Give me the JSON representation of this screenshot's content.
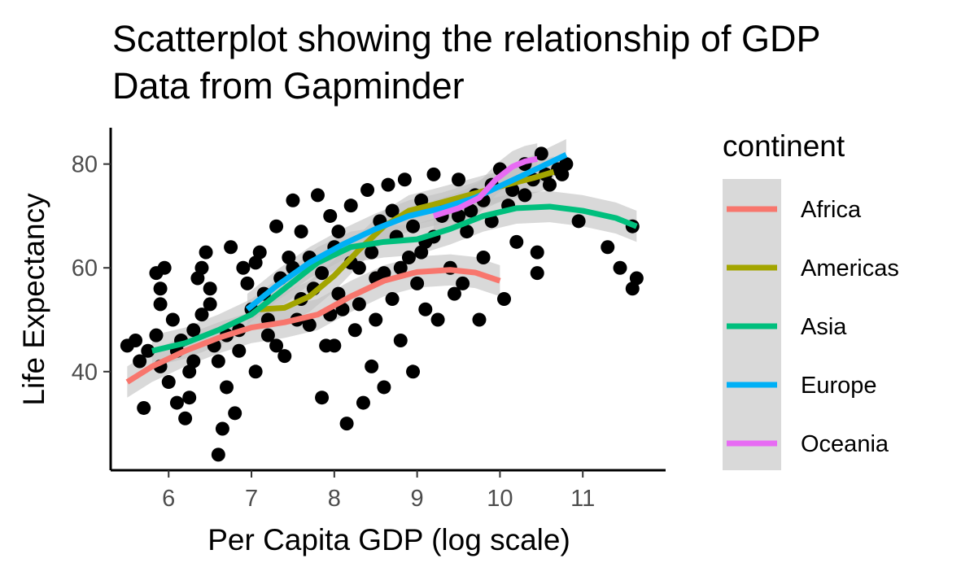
{
  "chart_data": {
    "type": "scatter",
    "title": "Scatterplot showing the relationship of GDP",
    "subtitle": "Data from Gapminder",
    "xlabel": "Per Capita GDP (log scale)",
    "ylabel": "Life Expectancy",
    "xlim": [
      5.3,
      12.0
    ],
    "ylim": [
      21,
      87
    ],
    "x_ticks": [
      6,
      7,
      8,
      9,
      10,
      11
    ],
    "y_ticks": [
      40,
      60,
      80
    ],
    "grid": false,
    "legend": {
      "title": "continent",
      "position": "right"
    },
    "point_color": "#000000",
    "band_color": "#bfbfbf",
    "legend_key_bg": "#d9d9d9",
    "points": [
      [
        5.5,
        45
      ],
      [
        5.6,
        46
      ],
      [
        5.65,
        42
      ],
      [
        5.7,
        33
      ],
      [
        5.75,
        44
      ],
      [
        5.85,
        47
      ],
      [
        5.85,
        59
      ],
      [
        5.9,
        56
      ],
      [
        5.95,
        60
      ],
      [
        5.9,
        53
      ],
      [
        5.9,
        41
      ],
      [
        6.0,
        38
      ],
      [
        6.1,
        34
      ],
      [
        6.1,
        44
      ],
      [
        6.2,
        31
      ],
      [
        6.25,
        35
      ],
      [
        6.3,
        48
      ],
      [
        6.3,
        42
      ],
      [
        6.35,
        58
      ],
      [
        6.4,
        60
      ],
      [
        6.45,
        63
      ],
      [
        6.5,
        53
      ],
      [
        6.55,
        45
      ],
      [
        6.6,
        24
      ],
      [
        6.65,
        29
      ],
      [
        6.7,
        37
      ],
      [
        6.75,
        64
      ],
      [
        6.8,
        32
      ],
      [
        6.85,
        48
      ],
      [
        6.9,
        60
      ],
      [
        7.0,
        52
      ],
      [
        7.05,
        40
      ],
      [
        7.1,
        63
      ],
      [
        7.15,
        55
      ],
      [
        7.2,
        47
      ],
      [
        7.3,
        68
      ],
      [
        7.35,
        58
      ],
      [
        7.4,
        43
      ],
      [
        7.5,
        73
      ],
      [
        7.55,
        50
      ],
      [
        7.6,
        67
      ],
      [
        7.7,
        62
      ],
      [
        7.75,
        56
      ],
      [
        7.8,
        74
      ],
      [
        7.85,
        35
      ],
      [
        7.9,
        45
      ],
      [
        7.95,
        70
      ],
      [
        8.0,
        64
      ],
      [
        8.05,
        55
      ],
      [
        8.1,
        52
      ],
      [
        8.15,
        30
      ],
      [
        8.2,
        72
      ],
      [
        8.25,
        48
      ],
      [
        8.3,
        60
      ],
      [
        8.35,
        34
      ],
      [
        8.4,
        75
      ],
      [
        8.45,
        41
      ],
      [
        8.5,
        58
      ],
      [
        8.55,
        69
      ],
      [
        8.6,
        37
      ],
      [
        8.65,
        76
      ],
      [
        8.7,
        54
      ],
      [
        8.75,
        66
      ],
      [
        8.8,
        46
      ],
      [
        8.85,
        77
      ],
      [
        8.9,
        62
      ],
      [
        8.95,
        40
      ],
      [
        9.0,
        57
      ],
      [
        9.05,
        73
      ],
      [
        9.1,
        65
      ],
      [
        9.2,
        78
      ],
      [
        9.25,
        50
      ],
      [
        9.3,
        70
      ],
      [
        9.4,
        60
      ],
      [
        9.5,
        77
      ],
      [
        9.55,
        57
      ],
      [
        9.6,
        67
      ],
      [
        9.7,
        74
      ],
      [
        9.75,
        50
      ],
      [
        9.8,
        62
      ],
      [
        9.9,
        69
      ],
      [
        10.0,
        79
      ],
      [
        10.05,
        54
      ],
      [
        10.1,
        72
      ],
      [
        10.2,
        65
      ],
      [
        10.3,
        80
      ],
      [
        10.4,
        77
      ],
      [
        10.45,
        59
      ],
      [
        10.45,
        63
      ],
      [
        10.5,
        82
      ],
      [
        10.6,
        76
      ],
      [
        10.7,
        79
      ],
      [
        10.75,
        78
      ],
      [
        10.8,
        80
      ],
      [
        10.95,
        69
      ],
      [
        11.3,
        64
      ],
      [
        11.45,
        60
      ],
      [
        11.6,
        56
      ],
      [
        11.65,
        58
      ],
      [
        11.6,
        68
      ],
      [
        6.05,
        50
      ],
      [
        6.15,
        46
      ],
      [
        6.25,
        40
      ],
      [
        6.4,
        51
      ],
      [
        6.5,
        56
      ],
      [
        6.6,
        42
      ],
      [
        6.7,
        47
      ],
      [
        6.85,
        44
      ],
      [
        6.95,
        57
      ],
      [
        7.05,
        61
      ],
      [
        7.2,
        50
      ],
      [
        7.3,
        45
      ],
      [
        7.45,
        62
      ],
      [
        7.6,
        54
      ],
      [
        7.7,
        49
      ],
      [
        7.85,
        59
      ],
      [
        7.95,
        51
      ],
      [
        8.05,
        67
      ],
      [
        8.2,
        61
      ],
      [
        8.3,
        53
      ],
      [
        8.45,
        63
      ],
      [
        8.6,
        59
      ],
      [
        8.7,
        71
      ],
      [
        8.8,
        60
      ],
      [
        8.95,
        68
      ],
      [
        9.05,
        63
      ],
      [
        9.2,
        66
      ],
      [
        9.35,
        72
      ],
      [
        9.5,
        70
      ],
      [
        9.65,
        71
      ],
      [
        9.8,
        73
      ],
      [
        9.9,
        76
      ],
      [
        10.15,
        75
      ],
      [
        10.3,
        74
      ],
      [
        10.55,
        78
      ],
      [
        8.0,
        45
      ],
      [
        8.5,
        50
      ],
      [
        9.1,
        52
      ],
      [
        9.45,
        55
      ],
      [
        7.5,
        60
      ]
    ],
    "series": [
      {
        "name": "Africa",
        "color": "#F8766D",
        "x": [
          5.5,
          5.8,
          6.2,
          6.6,
          7.0,
          7.4,
          7.8,
          8.2,
          8.6,
          9.0,
          9.4,
          9.7,
          10.0
        ],
        "y": [
          38,
          41,
          44,
          46.5,
          48.5,
          49.5,
          51,
          54.5,
          57.5,
          59.2,
          59.6,
          59.1,
          57.5
        ]
      },
      {
        "name": "Americas",
        "color": "#A3A500",
        "x": [
          7.1,
          7.4,
          7.7,
          8.0,
          8.3,
          8.6,
          8.9,
          9.2,
          9.5,
          9.8,
          10.1,
          10.4,
          10.65
        ],
        "y": [
          52,
          52.3,
          54.5,
          58.5,
          63.5,
          68,
          71,
          72.2,
          73.5,
          74.8,
          76.1,
          77.3,
          78.5
        ]
      },
      {
        "name": "Asia",
        "color": "#00BF7D",
        "x": [
          5.8,
          6.2,
          6.6,
          7.0,
          7.4,
          7.8,
          8.2,
          8.6,
          9.0,
          9.4,
          9.8,
          10.2,
          10.6,
          11.0,
          11.4,
          11.65
        ],
        "y": [
          44,
          45.5,
          48,
          51,
          56,
          61,
          64,
          65,
          65.5,
          67.5,
          70,
          71.5,
          71.8,
          71,
          69.6,
          68
        ]
      },
      {
        "name": "Europe",
        "color": "#00B0F6",
        "x": [
          6.95,
          7.3,
          7.7,
          8.1,
          8.5,
          8.9,
          9.3,
          9.7,
          10.1,
          10.5,
          10.8
        ],
        "y": [
          52,
          56.5,
          61,
          64.5,
          67.5,
          70,
          71.5,
          73.5,
          76.5,
          79.5,
          81.8
        ]
      },
      {
        "name": "Oceania",
        "color": "#E76BF3",
        "x": [
          9.2,
          9.5,
          9.75,
          9.95,
          10.15,
          10.3,
          10.45
        ],
        "y": [
          70,
          71.5,
          73.5,
          77,
          79.5,
          80.5,
          81
        ]
      }
    ]
  }
}
